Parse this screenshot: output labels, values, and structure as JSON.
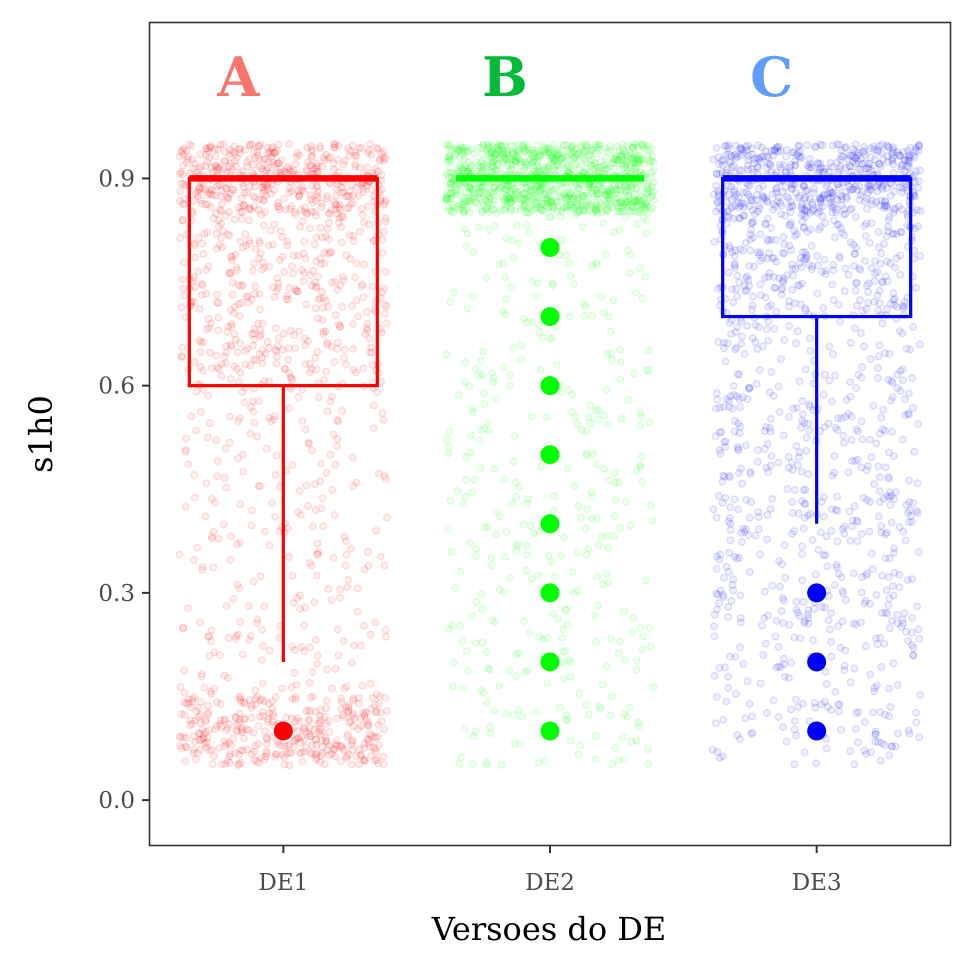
{
  "chart_data": {
    "type": "boxplot",
    "xlabel": "Versoes do DE",
    "ylabel": "s1h0",
    "ylim": [
      -0.065,
      1.125
    ],
    "yticks": [
      0.0,
      0.3,
      0.6,
      0.9
    ],
    "ytick_labels": [
      "0.0",
      "0.3",
      "0.6",
      "0.9"
    ],
    "categories": [
      "DE1",
      "DE2",
      "DE3"
    ],
    "grid": false,
    "legend": "none",
    "groups": [
      {
        "category": "DE1",
        "letter": "A",
        "letter_color": "#F8766D",
        "color": "#FF0000",
        "q1": 0.6,
        "median": 0.9,
        "q3": 0.9,
        "whisker_low": 0.2,
        "whisker_high": 0.9,
        "outliers": [
          0.1
        ],
        "jitter_bands": [
          {
            "lo": 0.85,
            "hi": 0.95,
            "share": 0.3
          },
          {
            "lo": 0.6,
            "hi": 0.85,
            "share": 0.27
          },
          {
            "lo": 0.15,
            "hi": 0.6,
            "share": 0.18
          },
          {
            "lo": 0.05,
            "hi": 0.15,
            "share": 0.25
          }
        ]
      },
      {
        "category": "DE2",
        "letter": "B",
        "letter_color": "#00BA38",
        "color": "#00FF00",
        "q1": 0.9,
        "median": 0.9,
        "q3": 0.9,
        "whisker_low": 0.9,
        "whisker_high": 0.9,
        "outliers": [
          0.1,
          0.2,
          0.3,
          0.4,
          0.5,
          0.6,
          0.7,
          0.8
        ],
        "jitter_bands": [
          {
            "lo": 0.85,
            "hi": 0.95,
            "share": 0.72
          },
          {
            "lo": 0.05,
            "hi": 0.85,
            "share": 0.28
          }
        ]
      },
      {
        "category": "DE3",
        "letter": "C",
        "letter_color": "#619CFF",
        "color": "#0000FF",
        "q1": 0.7,
        "median": 0.9,
        "q3": 0.9,
        "whisker_low": 0.4,
        "whisker_high": 0.9,
        "outliers": [
          0.1,
          0.2,
          0.3
        ],
        "jitter_bands": [
          {
            "lo": 0.85,
            "hi": 0.95,
            "share": 0.36
          },
          {
            "lo": 0.7,
            "hi": 0.85,
            "share": 0.2
          },
          {
            "lo": 0.05,
            "hi": 0.7,
            "share": 0.44
          }
        ]
      }
    ]
  }
}
